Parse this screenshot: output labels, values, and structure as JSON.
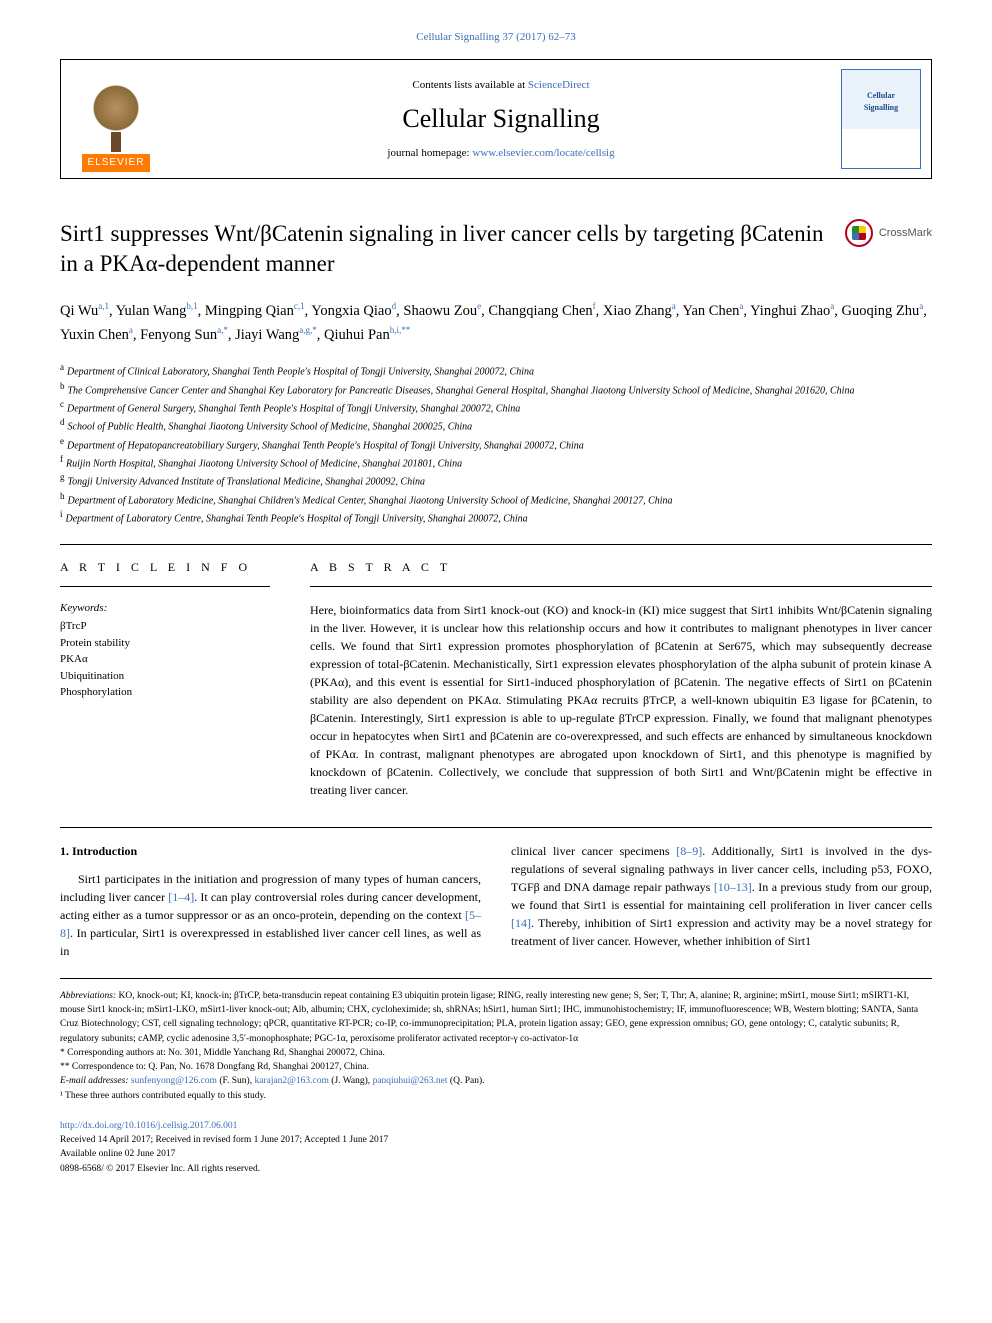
{
  "journal_ref": "Cellular Signalling 37 (2017) 62–73",
  "masthead": {
    "contents_prefix": "Contents lists available at ",
    "contents_link": "ScienceDirect",
    "journal_name": "Cellular Signalling",
    "homepage_prefix": "journal homepage: ",
    "homepage_link": "www.elsevier.com/locate/cellsig",
    "publisher": "ELSEVIER",
    "cover_text_1": "Cellular",
    "cover_text_2": "Signalling"
  },
  "crossmark_label": "CrossMark",
  "title": "Sirt1 suppresses Wnt/βCatenin signaling in liver cancer cells by targeting βCatenin in a PKAα-dependent manner",
  "authors_html": "Qi Wu<sup>a,1</sup>, Yulan Wang<sup>b,1</sup>, Mingping Qian<sup>c,1</sup>, Yongxia Qiao<sup>d</sup>, Shaowu Zou<sup>e</sup>, Changqiang Chen<sup>f</sup>, Xiao Zhang<sup>a</sup>, Yan Chen<sup>a</sup>, Yinghui Zhao<sup>a</sup>, Guoqing Zhu<sup>a</sup>, Yuxin Chen<sup>a</sup>, Fenyong Sun<sup>a,*</sup>, Jiayi Wang<sup>a,g,*</sup>, Qiuhui Pan<sup>h,i,**</sup>",
  "affiliations": [
    {
      "sup": "a",
      "text": "Department of Clinical Laboratory, Shanghai Tenth People's Hospital of Tongji University, Shanghai 200072, China"
    },
    {
      "sup": "b",
      "text": "The Comprehensive Cancer Center and Shanghai Key Laboratory for Pancreatic Diseases, Shanghai General Hospital, Shanghai Jiaotong University School of Medicine, Shanghai 201620, China"
    },
    {
      "sup": "c",
      "text": "Department of General Surgery, Shanghai Tenth People's Hospital of Tongji University, Shanghai 200072, China"
    },
    {
      "sup": "d",
      "text": "School of Public Health, Shanghai Jiaotong University School of Medicine, Shanghai 200025, China"
    },
    {
      "sup": "e",
      "text": "Department of Hepatopancreatobiliary Surgery, Shanghai Tenth People's Hospital of Tongji University, Shanghai 200072, China"
    },
    {
      "sup": "f",
      "text": "Ruijin North Hospital, Shanghai Jiaotong University School of Medicine, Shanghai 201801, China"
    },
    {
      "sup": "g",
      "text": "Tongji University Advanced Institute of Translational Medicine, Shanghai 200092, China"
    },
    {
      "sup": "h",
      "text": "Department of Laboratory Medicine, Shanghai Children's Medical Center, Shanghai Jiaotong University School of Medicine, Shanghai 200127, China"
    },
    {
      "sup": "i",
      "text": "Department of Laboratory Centre, Shanghai Tenth People's Hospital of Tongji University, Shanghai 200072, China"
    }
  ],
  "article_info_head": "A R T I C L E  I N F O",
  "abstract_head": "A B S T R A C T",
  "keywords_label": "Keywords:",
  "keywords": [
    "βTrcP",
    "Protein stability",
    "PKAα",
    "Ubiquitination",
    "Phosphorylation"
  ],
  "abstract": "Here, bioinformatics data from Sirt1 knock-out (KO) and knock-in (KI) mice suggest that Sirt1 inhibits Wnt/βCatenin signaling in the liver. However, it is unclear how this relationship occurs and how it contributes to malignant phenotypes in liver cancer cells. We found that Sirt1 expression promotes phosphorylation of βCatenin at Ser675, which may subsequently decrease expression of total-βCatenin. Mechanistically, Sirt1 expression elevates phosphorylation of the alpha subunit of protein kinase A (PKAα), and this event is essential for Sirt1-induced phosphorylation of βCatenin. The negative effects of Sirt1 on βCatenin stability are also dependent on PKAα. Stimulating PKAα recruits βTrCP, a well-known ubiquitin E3 ligase for βCatenin, to βCatenin. Interestingly, Sirt1 expression is able to up-regulate βTrCP expression. Finally, we found that malignant phenotypes occur in hepatocytes when Sirt1 and βCatenin are co-overexpressed, and such effects are enhanced by simultaneous knockdown of PKAα. In contrast, malignant phenotypes are abrogated upon knockdown of Sirt1, and this phenotype is magnified by knockdown of βCatenin. Collectively, we conclude that suppression of both Sirt1 and Wnt/βCatenin might be effective in treating liver cancer.",
  "intro_heading": "1. Introduction",
  "intro_col1": "Sirt1 participates in the initiation and progression of many types of human cancers, including liver cancer <span class=\"cite-link\">[1–4]</span>. It can play controversial roles during cancer development, acting either as a tumor suppressor or as an onco-protein, depending on the context <span class=\"cite-link\">[5–8]</span>. In particular, Sirt1 is overexpressed in established liver cancer cell lines, as well as in",
  "intro_col2": "clinical liver cancer specimens <span class=\"cite-link\">[8–9]</span>. Additionally, Sirt1 is involved in the dys-regulations of several signaling pathways in liver cancer cells, including p53, FOXO, TGFβ and DNA damage repair pathways <span class=\"cite-link\">[10–13]</span>. In a previous study from our group, we found that Sirt1 is essential for maintaining cell proliferation in liver cancer cells <span class=\"cite-link\">[14]</span>. Thereby, inhibition of Sirt1 expression and activity may be a novel strategy for treatment of liver cancer. However, whether inhibition of Sirt1",
  "footnotes": {
    "abbrev_label": "Abbreviations:",
    "abbrev_text": " KO, knock-out; KI, knock-in; βTrCP, beta-transducin repeat containing E3 ubiquitin protein ligase; RING, really interesting new gene; S, Ser; T, Thr; A, alanine; R, arginine; mSirt1, mouse Sirt1; mSIRT1-KI, mouse Sirt1 knock-in; mSirt1-LKO, mSirt1-liver knock-out; Alb, albumin; CHX, cycloheximide; sh, shRNAs; hSirt1, human Sirt1; IHC, immunohistochemistry; IF, immunofluorescence; WB, Western blotting; SANTA, Santa Cruz Biotechnology; CST, cell signaling technology; qPCR, quantitative RT-PCR; co-IP, co-immunoprecipitation; PLA, protein ligation assay; GEO, gene expression omnibus; GO, gene ontology; C, catalytic subunits; R, regulatory subunits; cAMP, cyclic adenosine 3,5′-monophosphate; PGC-1α, peroxisome proliferator activated receptor-γ co-activator-1α",
    "corr1": "* Corresponding authors at: No. 301, Middle Yanchang Rd, Shanghai 200072, China.",
    "corr2": "** Correspondence to: Q. Pan, No. 1678 Dongfang Rd, Shanghai 200127, China.",
    "email_label": "E-mail addresses:",
    "email1": "sunfenyong@126.com",
    "email1_who": " (F. Sun), ",
    "email2": "karajan2@163.com",
    "email2_who": " (J. Wang), ",
    "email3": "panqiuhui@263.net",
    "email3_who": " (Q. Pan).",
    "equal": "¹ These three authors contributed equally to this study."
  },
  "footer": {
    "doi": "http://dx.doi.org/10.1016/j.cellsig.2017.06.001",
    "history": "Received 14 April 2017; Received in revised form 1 June 2017; Accepted 1 June 2017",
    "online": "Available online 02 June 2017",
    "copyright": "0898-6568/ © 2017 Elsevier Inc. All rights reserved."
  },
  "colors": {
    "link": "#3b6fb5",
    "elsevier_orange": "#ff7a00",
    "crossmark_ring": "#b00020"
  }
}
